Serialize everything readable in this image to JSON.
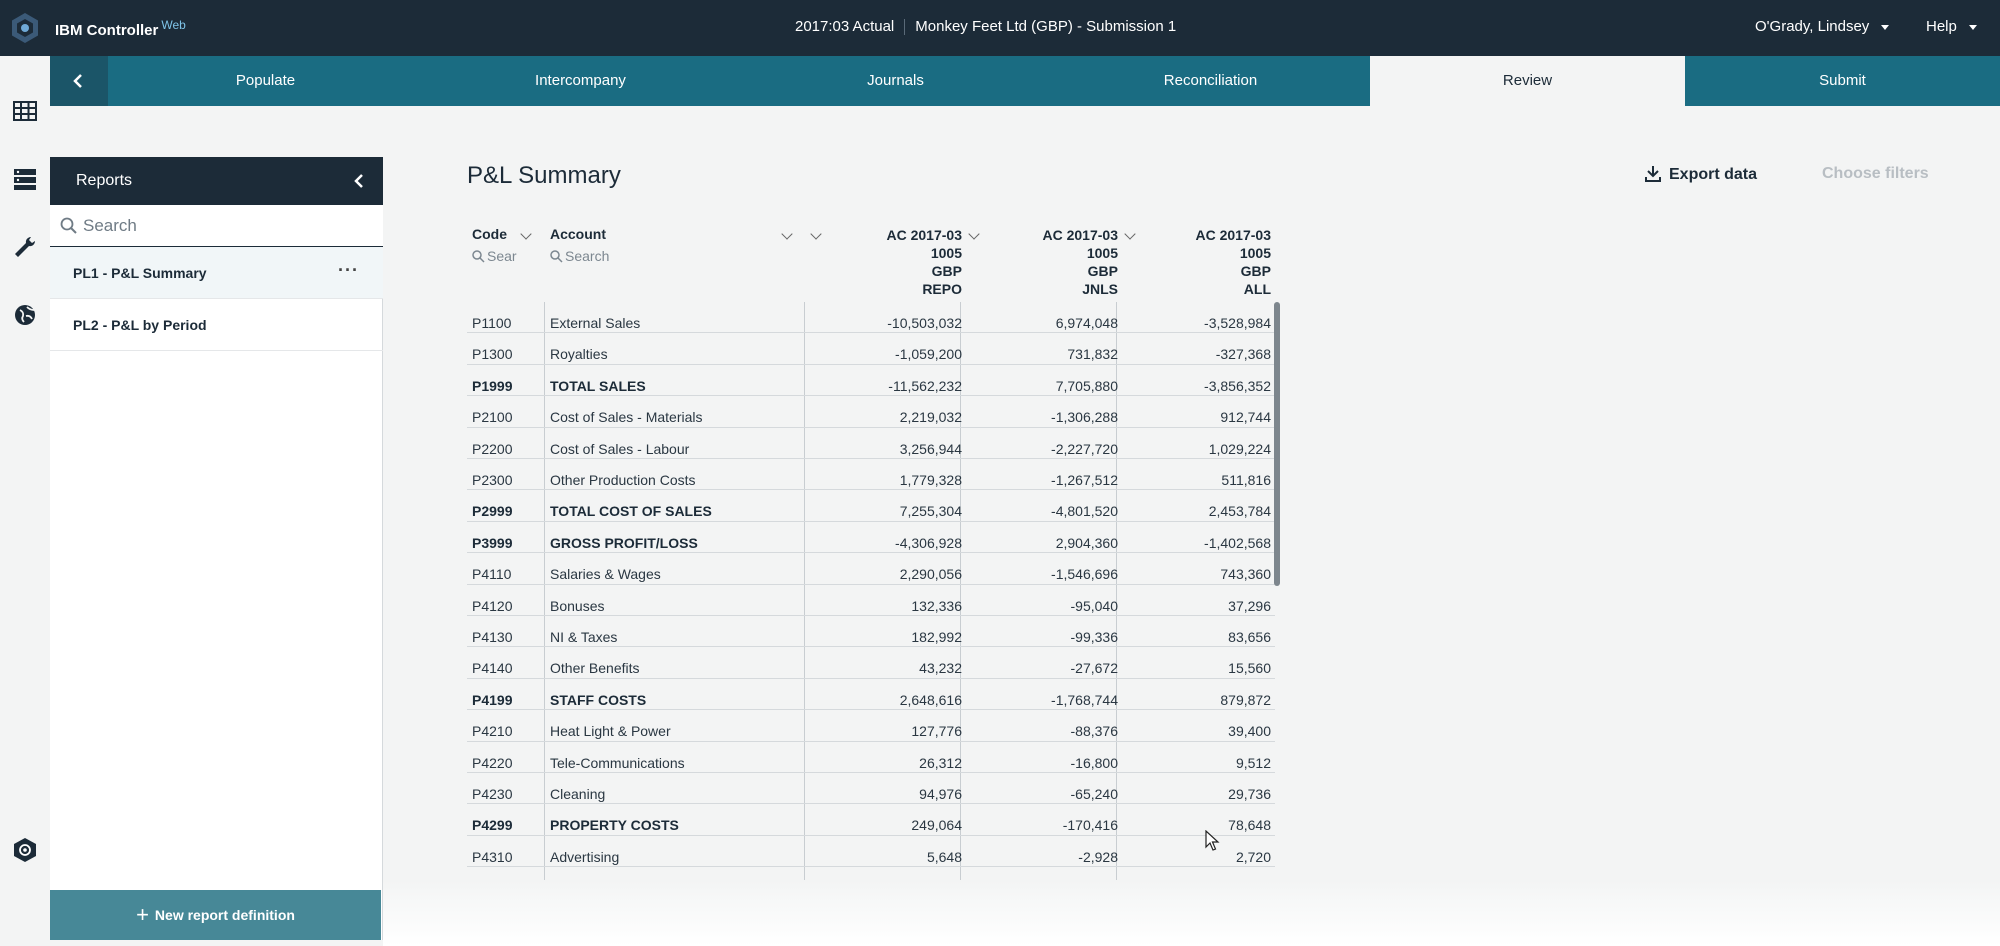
{
  "header": {
    "brand": "IBM Controller",
    "brand_sup": "Web",
    "period": "2017:03 Actual",
    "company": "Monkey Feet Ltd (GBP) - Submission 1",
    "user": "O'Grady, Lindsey",
    "help": "Help"
  },
  "tabs": [
    "Populate",
    "Intercompany",
    "Journals",
    "Reconciliation",
    "Review",
    "Submit"
  ],
  "active_tab": "Review",
  "reports": {
    "title": "Reports",
    "search_placeholder": "Search",
    "items": [
      {
        "label": "PL1 - P&L Summary",
        "selected": true
      },
      {
        "label": "PL2 - P&L by Period",
        "selected": false
      }
    ],
    "new_report": "New report definition"
  },
  "main": {
    "title": "P&L Summary",
    "export": "Export data",
    "filters": "Choose filters"
  },
  "grid": {
    "columns": {
      "code": "Code",
      "code_search": "Sear",
      "account": "Account",
      "account_search": "Search",
      "col1": [
        "AC 2017-03",
        "1005",
        "GBP",
        "REPO"
      ],
      "col2": [
        "AC 2017-03",
        "1005",
        "GBP",
        "JNLS"
      ],
      "col3": [
        "AC 2017-03",
        "1005",
        "GBP",
        "ALL"
      ]
    },
    "rows": [
      {
        "code": "P1100",
        "account": "External Sales",
        "v1": "-10,503,032",
        "v2": "6,974,048",
        "v3": "-3,528,984",
        "total": false
      },
      {
        "code": "P1300",
        "account": "Royalties",
        "v1": "-1,059,200",
        "v2": "731,832",
        "v3": "-327,368",
        "total": false
      },
      {
        "code": "P1999",
        "account": "TOTAL SALES",
        "v1": "-11,562,232",
        "v2": "7,705,880",
        "v3": "-3,856,352",
        "total": true
      },
      {
        "code": "P2100",
        "account": "Cost of Sales - Materials",
        "v1": "2,219,032",
        "v2": "-1,306,288",
        "v3": "912,744",
        "total": false
      },
      {
        "code": "P2200",
        "account": "Cost of Sales - Labour",
        "v1": "3,256,944",
        "v2": "-2,227,720",
        "v3": "1,029,224",
        "total": false
      },
      {
        "code": "P2300",
        "account": "Other Production Costs",
        "v1": "1,779,328",
        "v2": "-1,267,512",
        "v3": "511,816",
        "total": false
      },
      {
        "code": "P2999",
        "account": "TOTAL COST OF SALES",
        "v1": "7,255,304",
        "v2": "-4,801,520",
        "v3": "2,453,784",
        "total": true
      },
      {
        "code": "P3999",
        "account": "GROSS PROFIT/LOSS",
        "v1": "-4,306,928",
        "v2": "2,904,360",
        "v3": "-1,402,568",
        "total": true
      },
      {
        "code": "P4110",
        "account": "Salaries & Wages",
        "v1": "2,290,056",
        "v2": "-1,546,696",
        "v3": "743,360",
        "total": false
      },
      {
        "code": "P4120",
        "account": "Bonuses",
        "v1": "132,336",
        "v2": "-95,040",
        "v3": "37,296",
        "total": false
      },
      {
        "code": "P4130",
        "account": "NI & Taxes",
        "v1": "182,992",
        "v2": "-99,336",
        "v3": "83,656",
        "total": false
      },
      {
        "code": "P4140",
        "account": "Other Benefits",
        "v1": "43,232",
        "v2": "-27,672",
        "v3": "15,560",
        "total": false
      },
      {
        "code": "P4199",
        "account": "STAFF COSTS",
        "v1": "2,648,616",
        "v2": "-1,768,744",
        "v3": "879,872",
        "total": true
      },
      {
        "code": "P4210",
        "account": "Heat Light & Power",
        "v1": "127,776",
        "v2": "-88,376",
        "v3": "39,400",
        "total": false
      },
      {
        "code": "P4220",
        "account": "Tele-Communications",
        "v1": "26,312",
        "v2": "-16,800",
        "v3": "9,512",
        "total": false
      },
      {
        "code": "P4230",
        "account": "Cleaning",
        "v1": "94,976",
        "v2": "-65,240",
        "v3": "29,736",
        "total": false
      },
      {
        "code": "P4299",
        "account": "PROPERTY COSTS",
        "v1": "249,064",
        "v2": "-170,416",
        "v3": "78,648",
        "total": true
      },
      {
        "code": "P4310",
        "account": "Advertising",
        "v1": "5,648",
        "v2": "-2,928",
        "v3": "2,720",
        "total": false
      }
    ]
  },
  "colors": {
    "topbar": "#1c2b38",
    "tabbar": "#1a6c82",
    "accent_button": "#478897"
  }
}
